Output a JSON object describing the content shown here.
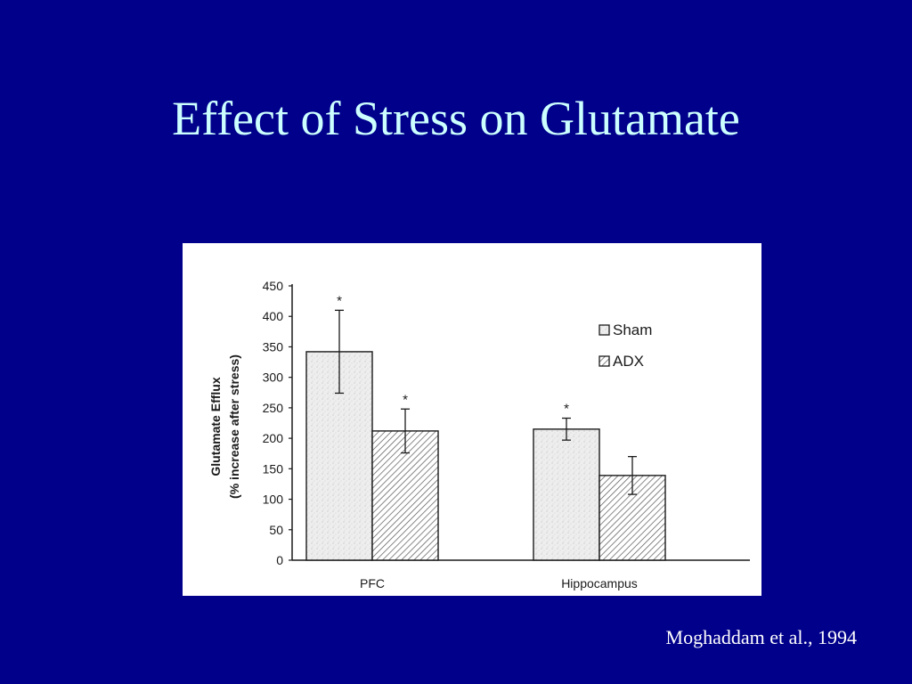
{
  "slide": {
    "title": "Effect of Stress on Glutamate",
    "citation": "Moghaddam et al., 1994"
  },
  "colors": {
    "background": "#00008b",
    "title": "#ccffff",
    "citation": "#ffffff",
    "sham_fill": "#eeeeee",
    "adx_fill": "#ffffff",
    "ink": "#1a1a1a"
  },
  "chart_data": {
    "type": "bar",
    "title": "",
    "ylabel_line1": "Glutamate Efflux",
    "ylabel_line2": "(% increase after stress)",
    "xlabel": "",
    "ylim": [
      0,
      450
    ],
    "yticks": [
      0,
      50,
      100,
      150,
      200,
      250,
      300,
      350,
      400,
      450
    ],
    "grid": false,
    "legend_position": "top-right",
    "categories": [
      "PFC",
      "Hippocampus"
    ],
    "series": [
      {
        "name": "Sham",
        "pattern": "stipple",
        "values": [
          342,
          215
        ],
        "error": [
          68,
          18
        ],
        "significant": [
          true,
          true
        ]
      },
      {
        "name": "ADX",
        "pattern": "hatched",
        "values": [
          212,
          139
        ],
        "error": [
          36,
          31
        ],
        "significant": [
          true,
          false
        ]
      }
    ],
    "significance_marker": "*"
  }
}
